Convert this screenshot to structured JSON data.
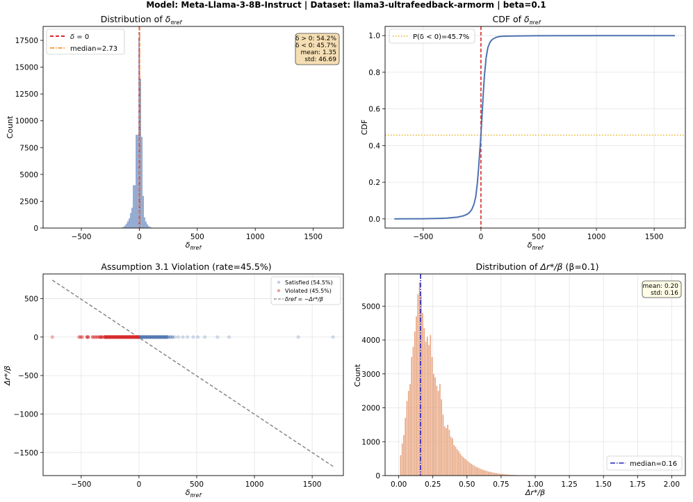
{
  "figure": {
    "suptitle": "Model: Meta-Llama-3-8B-Instruct | Dataset: llama3-ultrafeedback-armorm | beta=0.1"
  },
  "colors": {
    "blue": "#4c72b0",
    "hist_blue": "#7b98c8",
    "red": "#d62728",
    "orange": "#ff7f0e",
    "gold": "#e6b020",
    "salmon": "#e8a580",
    "navy": "#2222bb",
    "gray": "#808080",
    "box_bg": "#f5deb3",
    "box_bg2": "#fffde6"
  },
  "chart_data": [
    {
      "id": "p1",
      "type": "bar",
      "title_pre": "Distribution of ",
      "title_sym": "δ",
      "title_sub": "πref",
      "xlabel_sym": "δ",
      "xlabel_sub": "πref",
      "ylabel": "Count",
      "xlim": [
        -830,
        1760
      ],
      "ylim": [
        0,
        18800
      ],
      "xticks": [
        -500,
        0,
        500,
        1000,
        1500
      ],
      "xtick_labels": [
        "−500",
        "0",
        "500",
        "1000",
        "1500"
      ],
      "yticks": [
        0,
        2500,
        5000,
        7500,
        10000,
        12500,
        15000,
        17500
      ],
      "ytick_labels": [
        "0",
        "2500",
        "5000",
        "7500",
        "10000",
        "12500",
        "15000",
        "17500"
      ],
      "bar_width": 12,
      "bars": [
        {
          "x": -145,
          "y": 60
        },
        {
          "x": -133,
          "y": 120
        },
        {
          "x": -121,
          "y": 240
        },
        {
          "x": -109,
          "y": 420
        },
        {
          "x": -97,
          "y": 650
        },
        {
          "x": -85,
          "y": 900
        },
        {
          "x": -73,
          "y": 1400
        },
        {
          "x": -61,
          "y": 1900
        },
        {
          "x": -49,
          "y": 4000
        },
        {
          "x": -37,
          "y": 4000
        },
        {
          "x": -25,
          "y": 8700
        },
        {
          "x": -13,
          "y": 8700
        },
        {
          "x": -1,
          "y": 17800
        },
        {
          "x": 11,
          "y": 13900
        },
        {
          "x": 23,
          "y": 8500
        },
        {
          "x": 35,
          "y": 3000
        },
        {
          "x": 47,
          "y": 1000
        },
        {
          "x": 59,
          "y": 600
        },
        {
          "x": 71,
          "y": 350
        },
        {
          "x": 83,
          "y": 180
        },
        {
          "x": 95,
          "y": 90
        },
        {
          "x": 107,
          "y": 50
        },
        {
          "x": 119,
          "y": 25
        }
      ],
      "vlines": [
        {
          "x": 0,
          "style": "dashed",
          "color": "red",
          "label_sym": "δ",
          "label_rest": " = 0"
        },
        {
          "x": 2.73,
          "style": "dashdot",
          "color": "orange",
          "label": "median=2.73"
        }
      ],
      "legend": "upper left",
      "stats_box": [
        "δ > 0: 54.2%",
        "δ < 0: 45.7%",
        "mean: 1.35",
        "std: 46.69"
      ]
    },
    {
      "id": "p2",
      "type": "line",
      "title_pre": "CDF of ",
      "title_sym": "δ",
      "title_sub": "πref",
      "xlabel_sym": "δ",
      "xlabel_sub": "πref",
      "ylabel": "CDF",
      "xlim": [
        -830,
        1770
      ],
      "ylim": [
        -0.05,
        1.05
      ],
      "xticks": [
        -500,
        0,
        500,
        1000,
        1500
      ],
      "xtick_labels": [
        "−500",
        "0",
        "500",
        "1000",
        "1500"
      ],
      "yticks": [
        0,
        0.2,
        0.4,
        0.6,
        0.8,
        1.0
      ],
      "ytick_labels": [
        "0.0",
        "0.2",
        "0.4",
        "0.6",
        "0.8",
        "1.0"
      ],
      "grid": true,
      "x": [
        -750,
        -500,
        -300,
        -200,
        -150,
        -120,
        -100,
        -80,
        -60,
        -45,
        -30,
        -20,
        -10,
        -5,
        0,
        5,
        10,
        20,
        30,
        45,
        60,
        80,
        100,
        130,
        160,
        200,
        300,
        500,
        1000,
        1680
      ],
      "y": [
        0.0,
        0.001,
        0.004,
        0.01,
        0.017,
        0.025,
        0.035,
        0.05,
        0.08,
        0.12,
        0.2,
        0.28,
        0.37,
        0.41,
        0.457,
        0.51,
        0.57,
        0.68,
        0.78,
        0.88,
        0.935,
        0.965,
        0.98,
        0.99,
        0.995,
        0.997,
        0.998,
        0.999,
        1.0,
        1.0
      ],
      "vline": {
        "x": 0,
        "style": "dashed",
        "color": "red"
      },
      "hline": {
        "y": 0.457,
        "style": "dotted",
        "color": "gold",
        "label": "P(δ < 0)=45.7%"
      },
      "legend": "upper left"
    },
    {
      "id": "p3",
      "type": "scatter",
      "title": "Assumption 3.1 Violation (rate=45.5%)",
      "xlabel_sym": "δ",
      "xlabel_sub": "πref",
      "ylabel": "Δr*/β",
      "xlim": [
        -830,
        1770
      ],
      "ylim": [
        -1800,
        820
      ],
      "xticks": [
        -500,
        0,
        500,
        1000,
        1500
      ],
      "xtick_labels": [
        "−500",
        "0",
        "500",
        "1000",
        "1500"
      ],
      "yticks": [
        -1500,
        -1000,
        -500,
        0,
        500
      ],
      "ytick_labels": [
        "−1500",
        "−1000",
        "−500",
        "0",
        "500"
      ],
      "grid": true,
      "satisfied_label": "Satisfied (54.5%)",
      "violated_label": "Violated (45.5%)",
      "line_label": "δref = −Δr*/β",
      "violated_x": [
        -750,
        -520,
        -510,
        -500,
        -490,
        -450,
        -440,
        -400,
        -380,
        -360,
        -340,
        -330,
        -320,
        -300,
        -290,
        -280,
        -270,
        -260,
        -250,
        -240,
        -230,
        -220,
        -210,
        -200,
        -190,
        -180,
        -170,
        -160,
        -150,
        -140,
        -130,
        -120,
        -110,
        -100,
        -90,
        -80,
        -70,
        -60,
        -50,
        -40,
        -30,
        -20,
        -10,
        -5
      ],
      "satisfied_x": [
        5,
        10,
        20,
        30,
        40,
        50,
        60,
        70,
        80,
        90,
        100,
        110,
        120,
        130,
        140,
        150,
        160,
        170,
        180,
        190,
        200,
        210,
        220,
        230,
        240,
        250,
        270,
        290,
        310,
        340,
        380,
        420,
        470,
        510,
        570,
        680,
        780,
        1380,
        1680
      ],
      "ref_line": {
        "x": [
          -750,
          1680
        ],
        "y": [
          740,
          -1680
        ]
      },
      "legend": "upper right"
    },
    {
      "id": "p4",
      "type": "bar",
      "title_pre": "Distribution of ",
      "title_math": "Δr*/β",
      "title_post": " (β=0.1)",
      "xlabel": "Δr*/β",
      "ylabel": "Count",
      "xlim": [
        -0.1,
        2.1
      ],
      "ylim": [
        0,
        5950
      ],
      "xticks": [
        0,
        0.25,
        0.5,
        0.75,
        1.0,
        1.25,
        1.5,
        1.75,
        2.0
      ],
      "xtick_labels": [
        "0.00",
        "0.25",
        "0.50",
        "0.75",
        "1.00",
        "1.25",
        "1.50",
        "1.75",
        "2.00"
      ],
      "yticks": [
        0,
        1000,
        2000,
        3000,
        4000,
        5000
      ],
      "ytick_labels": [
        "0",
        "1000",
        "2000",
        "3000",
        "4000",
        "5000"
      ],
      "grid": true,
      "bar_width": 0.0115,
      "values": [
        600,
        950,
        1200,
        1700,
        2200,
        2500,
        2700,
        3500,
        3800,
        4250,
        4700,
        5350,
        5700,
        5300,
        4800,
        4350,
        3950,
        4100,
        3850,
        4150,
        3500,
        3000,
        2900,
        2650,
        2500,
        2700,
        2250,
        1800,
        1450,
        1400,
        1500,
        1350,
        1150,
        1100,
        900,
        850,
        780,
        720,
        650,
        590,
        540,
        500,
        460,
        420,
        380,
        350,
        320,
        290,
        260,
        240,
        220,
        200,
        180,
        160,
        150,
        135,
        120,
        110,
        100,
        90,
        80,
        72,
        65,
        58,
        52,
        46,
        41,
        36,
        32,
        28,
        25,
        22,
        19,
        16,
        14,
        12,
        10,
        8,
        7,
        6,
        5,
        4,
        3,
        3,
        2,
        2,
        1
      ],
      "bar_start": 0.01,
      "median_line": {
        "x": 0.16,
        "style": "dashdot",
        "color": "navy",
        "label": "median=0.16"
      },
      "legend": "lower right",
      "stats_box": [
        "mean: 0.20",
        "std: 0.16"
      ]
    }
  ]
}
